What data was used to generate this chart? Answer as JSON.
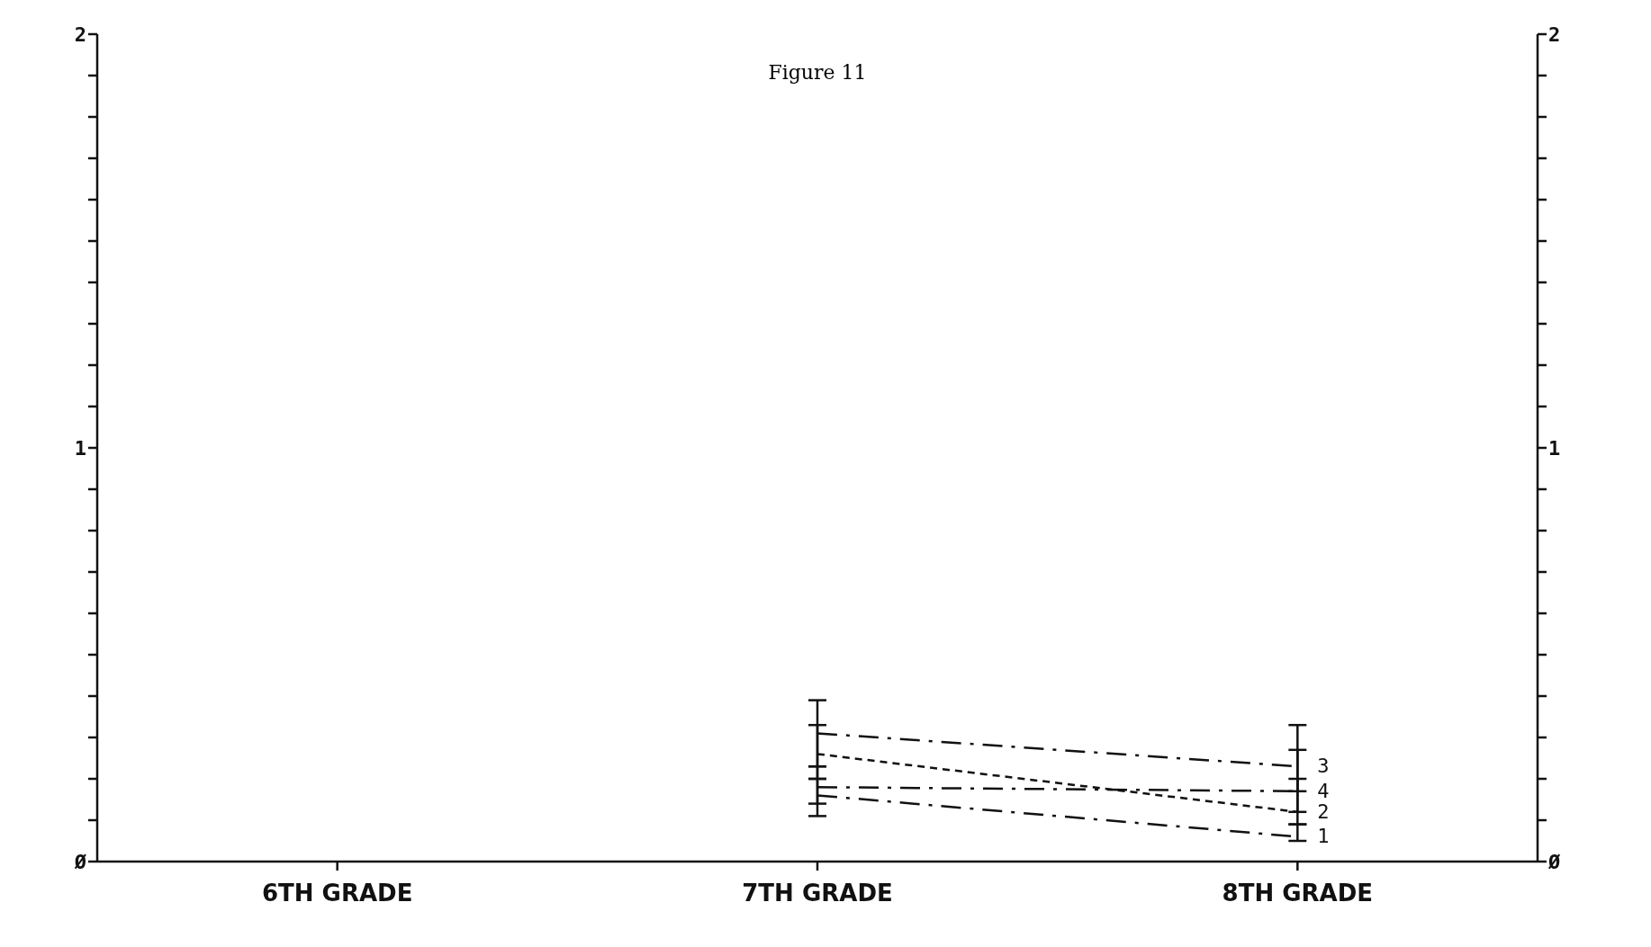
{
  "chart_data": {
    "type": "line",
    "title": "Figure 11",
    "categories": [
      "6TH GRADE",
      "7TH GRADE",
      "8TH GRADE"
    ],
    "series": [
      {
        "name": "3",
        "color": "#111111",
        "line_style": "dashed",
        "values": [
          null,
          0.31,
          0.23
        ],
        "errors": [
          null,
          [
            0.23,
            0.39
          ],
          [
            0.17,
            0.33
          ]
        ]
      },
      {
        "name": "2",
        "color": "#111111",
        "line_style": "dotted",
        "values": [
          null,
          0.26,
          0.12
        ],
        "errors": [
          null,
          [
            0.2,
            0.33
          ],
          [
            0.09,
            0.27
          ]
        ]
      },
      {
        "name": "4",
        "color": "#111111",
        "line_style": "dashed",
        "values": [
          null,
          0.18,
          0.17
        ],
        "errors": [
          null,
          [
            0.14,
            0.23
          ],
          [
            0.12,
            0.2
          ]
        ]
      },
      {
        "name": "1",
        "color": "#111111",
        "line_style": "dashed",
        "values": [
          null,
          0.16,
          0.06
        ],
        "errors": [
          null,
          [
            0.11,
            0.2
          ],
          [
            0.05,
            0.09
          ]
        ]
      }
    ],
    "ylim": [
      0,
      2
    ],
    "yticks": [
      {
        "value": 0,
        "label": "Ø"
      },
      {
        "value": 0.1,
        "label": null
      },
      {
        "value": 0.2,
        "label": null
      },
      {
        "value": 0.3,
        "label": null
      },
      {
        "value": 0.4,
        "label": null
      },
      {
        "value": 0.5,
        "label": null
      },
      {
        "value": 0.6,
        "label": null
      },
      {
        "value": 0.7,
        "label": null
      },
      {
        "value": 0.8,
        "label": null
      },
      {
        "value": 0.9,
        "label": null
      },
      1,
      {
        "value": 1.1,
        "label": null
      },
      {
        "value": 1.2,
        "label": null
      },
      {
        "value": 1.3,
        "label": null
      },
      {
        "value": 1.4,
        "label": null
      },
      {
        "value": 1.5,
        "label": null
      },
      {
        "value": 1.6,
        "label": null
      },
      {
        "value": 1.7,
        "label": null
      },
      {
        "value": 1.8,
        "label": null
      },
      {
        "value": 1.9,
        "label": null
      },
      2
    ],
    "y2lim": [
      0,
      2
    ],
    "y2ticks": [
      {
        "value": 0,
        "label": "Ø"
      },
      {
        "value": 0.1,
        "label": null
      },
      {
        "value": 0.2,
        "label": null
      },
      {
        "value": 0.3,
        "label": null
      },
      {
        "value": 0.4,
        "label": null
      },
      {
        "value": 0.5,
        "label": null
      },
      {
        "value": 0.6,
        "label": null
      },
      {
        "value": 0.7,
        "label": null
      },
      {
        "value": 0.8,
        "label": null
      },
      {
        "value": 0.9,
        "label": null
      },
      1,
      {
        "value": 1.1,
        "label": null
      },
      {
        "value": 1.2,
        "label": null
      },
      {
        "value": 1.3,
        "label": null
      },
      {
        "value": 1.4,
        "label": null
      },
      {
        "value": 1.5,
        "label": null
      },
      {
        "value": 1.6,
        "label": null
      },
      {
        "value": 1.7,
        "label": null
      },
      {
        "value": 1.8,
        "label": null
      },
      {
        "value": 1.9,
        "label": null
      },
      2
    ],
    "marker": "none",
    "grid": false
  }
}
